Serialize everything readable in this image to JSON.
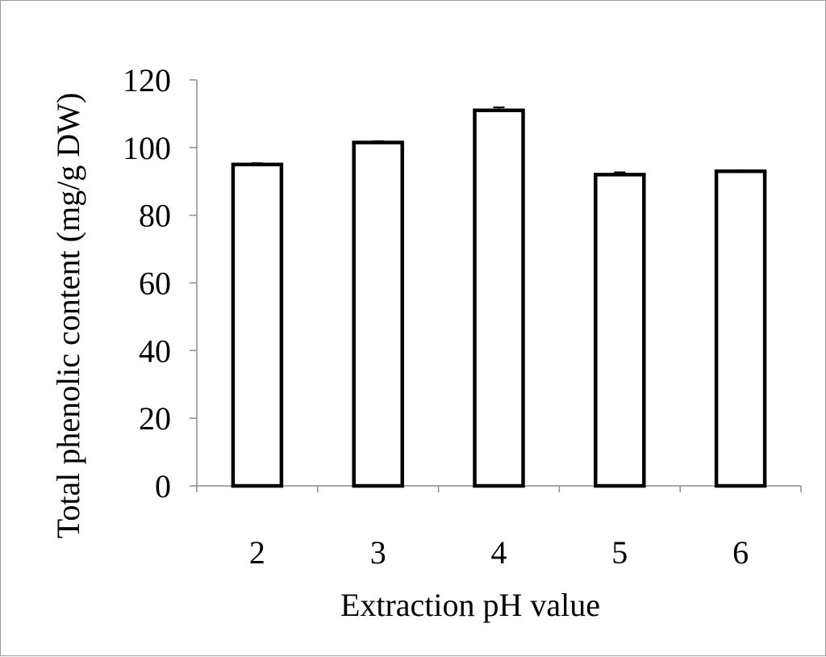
{
  "chart_data": {
    "type": "bar",
    "categories": [
      "2",
      "3",
      "4",
      "5",
      "6"
    ],
    "values": [
      95,
      101.5,
      111,
      92,
      93
    ],
    "errors": [
      0.4,
      0.4,
      0.9,
      0.7,
      0.3
    ],
    "xlabel": "Extraction pH value",
    "ylabel": "Total phenolic content (mg/g DW)",
    "ylim": [
      0,
      120
    ],
    "yticks": [
      "0",
      "20",
      "40",
      "60",
      "80",
      "100",
      "120"
    ],
    "grid": false,
    "bar_fill": "#ffffff",
    "bar_stroke": "#000000"
  }
}
